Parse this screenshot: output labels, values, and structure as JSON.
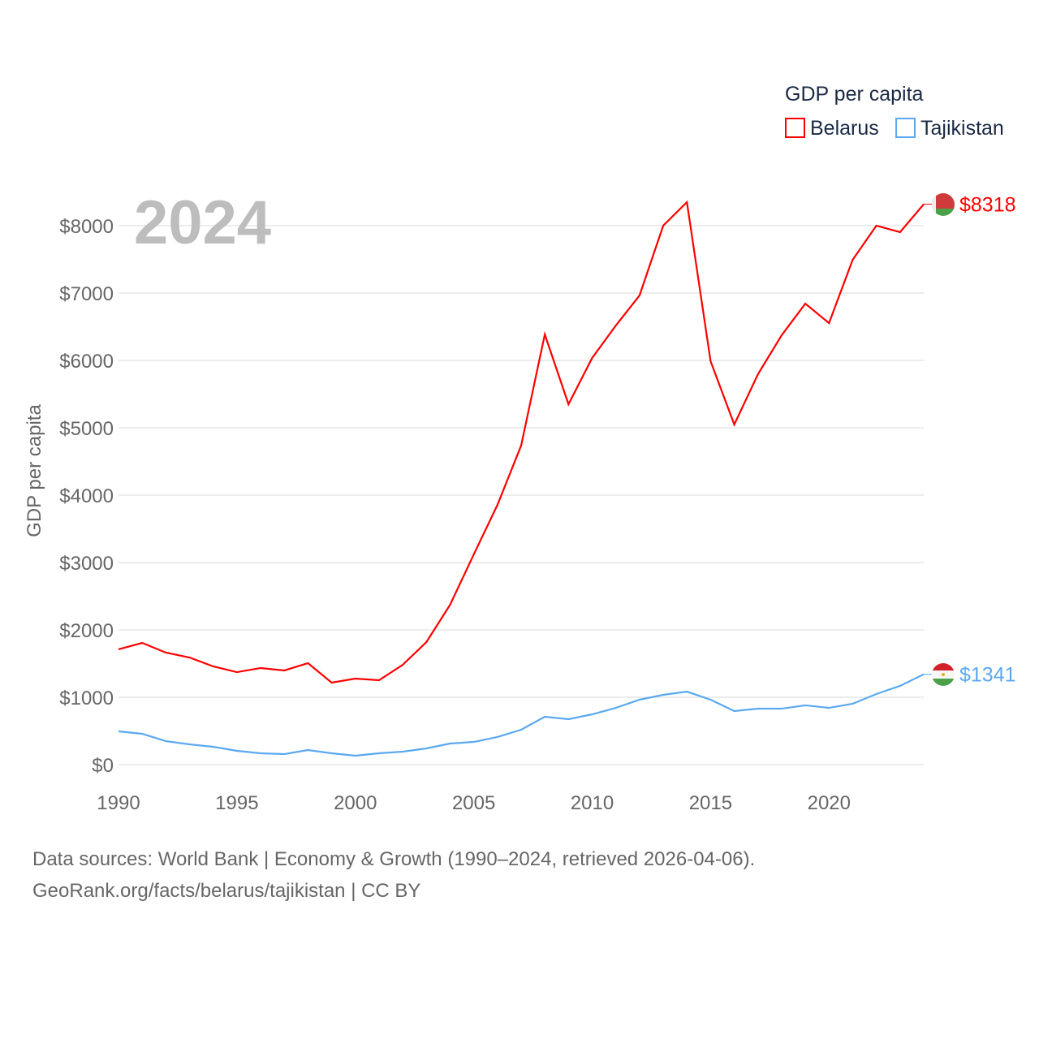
{
  "chart_data": {
    "type": "line",
    "title": "GDP per capita",
    "ylabel": "GDP per capita",
    "xlabel": "",
    "year_label": "2024",
    "xlim": [
      1990,
      2024
    ],
    "ylim": [
      0,
      8000
    ],
    "x_ticks": [
      1990,
      1995,
      2000,
      2005,
      2010,
      2015,
      2020
    ],
    "y_ticks": [
      0,
      1000,
      2000,
      3000,
      4000,
      5000,
      6000,
      7000,
      8000
    ],
    "y_tick_labels": [
      "$0",
      "$1000",
      "$2000",
      "$3000",
      "$4000",
      "$5000",
      "$6000",
      "$7000",
      "$8000"
    ],
    "grid": true,
    "legend_placement": "top-right",
    "x": [
      1990,
      1991,
      1992,
      1993,
      1994,
      1995,
      1996,
      1997,
      1998,
      1999,
      2000,
      2001,
      2002,
      2003,
      2004,
      2005,
      2006,
      2007,
      2008,
      2009,
      2010,
      2011,
      2012,
      2013,
      2014,
      2015,
      2016,
      2017,
      2018,
      2019,
      2020,
      2021,
      2022,
      2023,
      2024
    ],
    "series": [
      {
        "name": "Belarus",
        "color": "#ff0000",
        "end_label": "$8318",
        "values": [
          1711,
          1807,
          1663,
          1590,
          1458,
          1373,
          1434,
          1398,
          1506,
          1217,
          1277,
          1253,
          1482,
          1819,
          2373,
          3120,
          3855,
          4735,
          6386,
          5349,
          6036,
          6518,
          6964,
          8000,
          8349,
          5988,
          5048,
          5795,
          6373,
          6843,
          6554,
          7494,
          8000,
          7904,
          8318
        ]
      },
      {
        "name": "Tajikistan",
        "color": "#5aa9f0",
        "end_label": "$1341",
        "values": [
          494,
          458,
          349,
          301,
          265,
          205,
          169,
          157,
          217,
          169,
          133,
          169,
          193,
          241,
          313,
          337,
          410,
          518,
          711,
          675,
          747,
          843,
          964,
          1036,
          1084,
          964,
          795,
          831,
          831,
          880,
          843,
          904,
          1048,
          1169,
          1341
        ]
      }
    ]
  },
  "footer": {
    "line1": "Data sources: World Bank | Economy & Growth (1990–2024, retrieved 2026-04-06).",
    "line2": "GeoRank.org/facts/belarus/tajikistan | CC BY"
  }
}
